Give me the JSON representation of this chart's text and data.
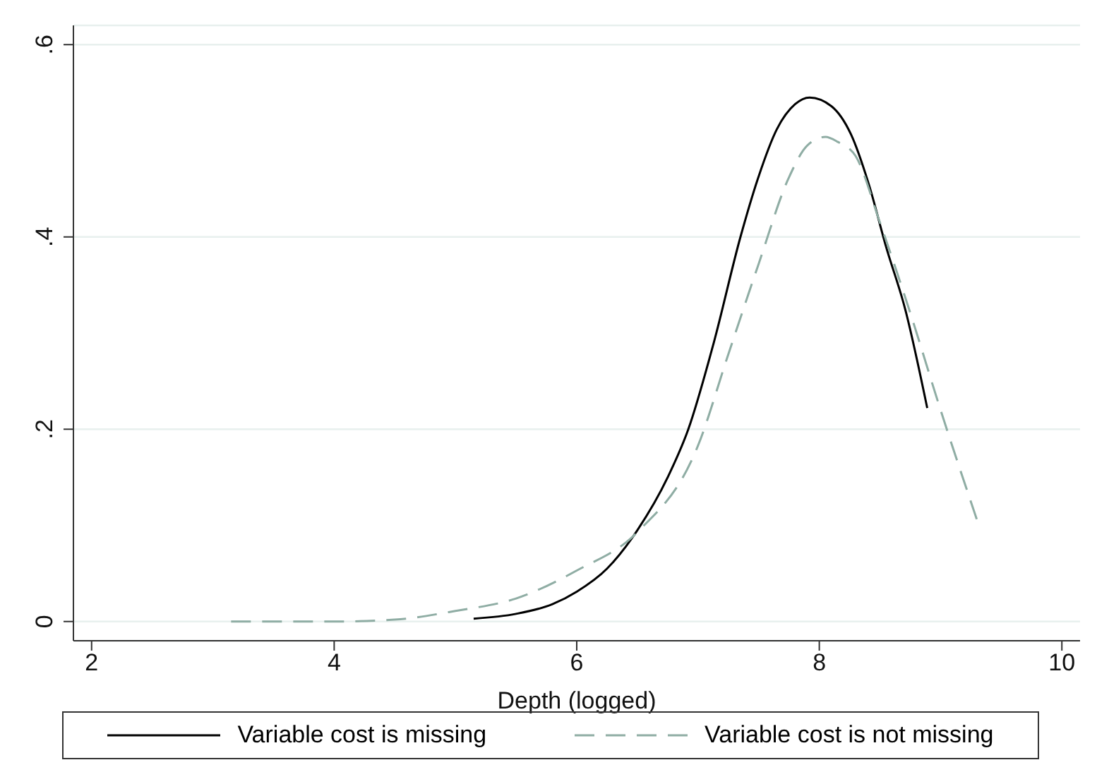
{
  "chart_data": {
    "type": "line",
    "xlabel": "Depth (logged)",
    "xlim": [
      1.85,
      10.15
    ],
    "xticks": [
      2,
      4,
      6,
      8,
      10
    ],
    "ylim": [
      -0.02,
      0.62
    ],
    "yticks": [
      0,
      {
        "value": 0.2,
        "label": ".2"
      },
      {
        "value": 0.4,
        "label": ".4"
      },
      {
        "value": 0.6,
        "label": ".6"
      }
    ],
    "grid": "y",
    "legend": "bottom",
    "marker": "none",
    "series": [
      {
        "name": "Variable cost is missing",
        "color": "#000000",
        "line_style": "solid",
        "x": [
          5.15,
          5.5,
          5.8,
          6.0,
          6.25,
          6.5,
          6.75,
          6.92,
          7.13,
          7.35,
          7.5,
          7.65,
          7.8,
          7.92,
          8.1,
          8.26,
          8.41,
          8.55,
          8.71,
          8.89
        ],
        "values": [
          0.003,
          0.008,
          0.018,
          0.031,
          0.055,
          0.095,
          0.15,
          0.2,
          0.29,
          0.4,
          0.463,
          0.512,
          0.538,
          0.545,
          0.536,
          0.507,
          0.454,
          0.39,
          0.324,
          0.222
        ]
      },
      {
        "name": "Variable cost is not missing",
        "color": "#8fada4",
        "line_style": "dashed",
        "x": [
          3.15,
          4.0,
          4.5,
          5.0,
          5.5,
          6.0,
          6.5,
          7.0,
          7.25,
          7.5,
          7.75,
          7.9,
          8.05,
          8.15,
          8.3,
          8.5,
          8.75,
          9.0,
          9.31
        ],
        "values": [
          0,
          0,
          0.002,
          0.011,
          0.024,
          0.053,
          0.093,
          0.183,
          0.278,
          0.372,
          0.462,
          0.495,
          0.504,
          0.499,
          0.484,
          0.415,
          0.321,
          0.22,
          0.102
        ]
      }
    ]
  }
}
